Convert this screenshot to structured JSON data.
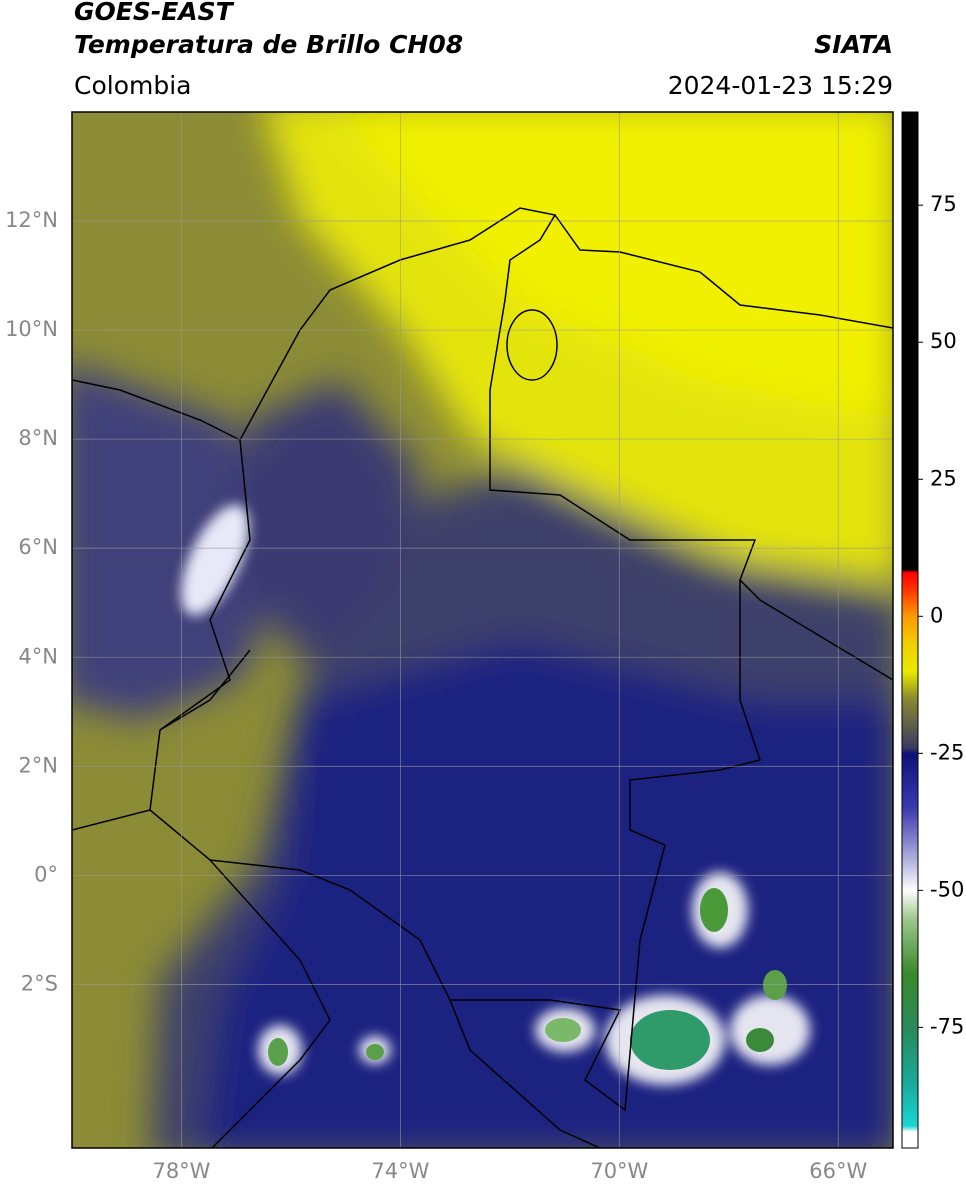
{
  "header": {
    "title": "GOES-EAST",
    "subtitle": "Temperatura de Brillo CH08",
    "source": "SIATA",
    "region": "Colombia",
    "timestamp": "2024-01-23 15:29"
  },
  "map": {
    "lonlim": [
      -80,
      -65
    ],
    "latlim": [
      -5,
      14
    ],
    "grid": true,
    "lon_ticks": [
      {
        "value": -78,
        "label": "78°W"
      },
      {
        "value": -74,
        "label": "74°W"
      },
      {
        "value": -70,
        "label": "70°W"
      },
      {
        "value": -66,
        "label": "66°W"
      }
    ],
    "lat_ticks": [
      {
        "value": 12,
        "label": "12°N"
      },
      {
        "value": 10,
        "label": "10°N"
      },
      {
        "value": 8,
        "label": "8°N"
      },
      {
        "value": 6,
        "label": "6°N"
      },
      {
        "value": 4,
        "label": "4°N"
      },
      {
        "value": 2,
        "label": "2°N"
      },
      {
        "value": 0,
        "label": "0°"
      },
      {
        "value": -2,
        "label": "2°S"
      }
    ]
  },
  "colorbar": {
    "lim": [
      -97,
      92
    ],
    "ticks": [
      75,
      50,
      25,
      0,
      -25,
      -50,
      -75
    ],
    "stops": [
      {
        "value": -97,
        "color": "#ffffff"
      },
      {
        "value": -94,
        "color": "#ffffff"
      },
      {
        "value": -93,
        "color": "#1ad6d6"
      },
      {
        "value": -85,
        "color": "#1aa89a"
      },
      {
        "value": -75,
        "color": "#2a8a5a"
      },
      {
        "value": -65,
        "color": "#3a8a2a"
      },
      {
        "value": -55,
        "color": "#a0c890"
      },
      {
        "value": -50,
        "color": "#ffffff"
      },
      {
        "value": -45,
        "color": "#b8b8e0"
      },
      {
        "value": -35,
        "color": "#3a3ab0"
      },
      {
        "value": -25,
        "color": "#10107a"
      },
      {
        "value": -24,
        "color": "#3a3a60"
      },
      {
        "value": -15,
        "color": "#8a8a30"
      },
      {
        "value": -10,
        "color": "#eaea00"
      },
      {
        "value": -5,
        "color": "#f0d000"
      },
      {
        "value": 0,
        "color": "#ff9900"
      },
      {
        "value": 5,
        "color": "#ff3300"
      },
      {
        "value": 8,
        "color": "#ff0000"
      },
      {
        "value": 8.5,
        "color": "#000000"
      },
      {
        "value": 92,
        "color": "#000000"
      }
    ]
  }
}
